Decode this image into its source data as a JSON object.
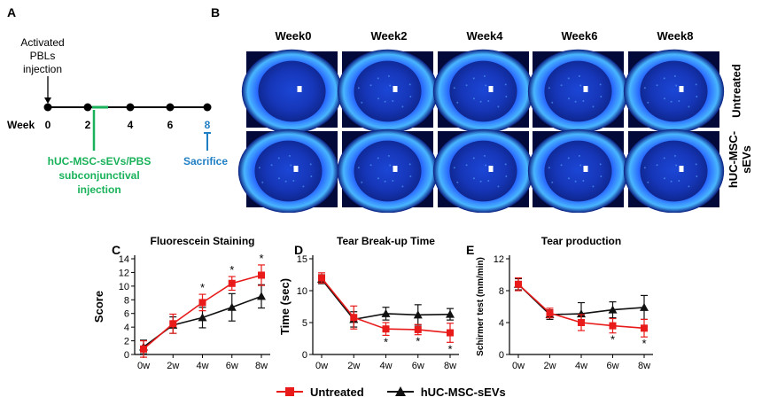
{
  "panel_labels": {
    "a": "A",
    "b": "B",
    "c": "C",
    "d": "D",
    "e": "E"
  },
  "timeline": {
    "week_label": "Week",
    "ticks": [
      "0",
      "2",
      "4",
      "6",
      "8"
    ],
    "injection_label": [
      "Activated",
      "PBLs",
      "injection"
    ],
    "treatment_label": [
      "hUC-MSC-sEVs/PBS",
      "subconjunctival",
      "injection"
    ],
    "sacrifice_label": "Sacrifice",
    "colors": {
      "treatment": "#19b25a",
      "sacrifice": "#1f7fc4"
    }
  },
  "eye_grid": {
    "weeks": [
      "Week0",
      "Week2",
      "Week4",
      "Week6",
      "Week8"
    ],
    "rows": [
      "Untreated",
      "hUC-MSC-sEVs"
    ],
    "rows_display": [
      "Untreated",
      "hUC-MSC-\nsEVs"
    ],
    "image_alt": "fluorescein-stained cornea",
    "colors": {
      "ring": "#1b5cff",
      "cornea": "#1636b8",
      "background": "#030a3a"
    }
  },
  "legend": {
    "untreated": "Untreated",
    "treated": "hUC-MSC-sEVs",
    "colors": {
      "untreated": "#e81a1a",
      "treated": "#111111"
    }
  },
  "chart_data": [
    {
      "type": "line",
      "title": "Fluorescein Staining",
      "xlabel": "",
      "ylabel": "Score",
      "categories": [
        "0w",
        "2w",
        "4w",
        "6w",
        "8w"
      ],
      "ylim": [
        0,
        14
      ],
      "yticks": [
        0,
        2,
        4,
        6,
        8,
        10,
        12,
        14
      ],
      "series": [
        {
          "name": "Untreated",
          "color": "#e81a1a",
          "values": [
            0.8,
            4.5,
            7.6,
            10.4,
            11.6
          ],
          "errors": [
            1.2,
            1.4,
            1.2,
            1.0,
            1.5
          ]
        },
        {
          "name": "hUC-MSC-sEVs",
          "color": "#111111",
          "values": [
            1.1,
            4.3,
            5.4,
            6.9,
            8.5
          ],
          "errors": [
            1.0,
            1.2,
            1.5,
            2.0,
            1.7
          ]
        }
      ],
      "significance": [
        "",
        "",
        "*",
        "*",
        "*"
      ]
    },
    {
      "type": "line",
      "title": "Tear Break-up Time",
      "xlabel": "",
      "ylabel": "Time (sec)",
      "categories": [
        "0w",
        "2w",
        "4w",
        "6w",
        "8w"
      ],
      "ylim": [
        0,
        15
      ],
      "yticks": [
        0,
        5,
        10,
        15
      ],
      "series": [
        {
          "name": "Untreated",
          "color": "#e81a1a",
          "values": [
            12.0,
            5.8,
            4.0,
            3.9,
            3.4
          ],
          "errors": [
            0.8,
            1.8,
            1.0,
            0.8,
            1.5
          ]
        },
        {
          "name": "hUC-MSC-sEVs",
          "color": "#111111",
          "values": [
            11.8,
            5.5,
            6.4,
            6.2,
            6.3
          ],
          "errors": [
            0.7,
            1.2,
            1.0,
            1.6,
            0.9
          ]
        }
      ],
      "significance": [
        "",
        "",
        "*",
        "*",
        "*"
      ]
    },
    {
      "type": "line",
      "title": "Tear production",
      "xlabel": "",
      "ylabel": "Schirmer test (mm/min)",
      "categories": [
        "0w",
        "2w",
        "4w",
        "6w",
        "8w"
      ],
      "ylim": [
        0,
        12
      ],
      "yticks": [
        0,
        4,
        8,
        12
      ],
      "series": [
        {
          "name": "Untreated",
          "color": "#e81a1a",
          "values": [
            8.8,
            5.2,
            4.0,
            3.6,
            3.3
          ],
          "errors": [
            0.8,
            0.6,
            1.0,
            0.9,
            1.1
          ]
        },
        {
          "name": "hUC-MSC-sEVs",
          "color": "#111111",
          "values": [
            8.8,
            5.0,
            5.1,
            5.6,
            5.9
          ],
          "errors": [
            0.7,
            0.6,
            1.4,
            1.0,
            1.5
          ]
        }
      ],
      "significance": [
        "",
        "",
        "",
        "*",
        "*"
      ]
    }
  ]
}
